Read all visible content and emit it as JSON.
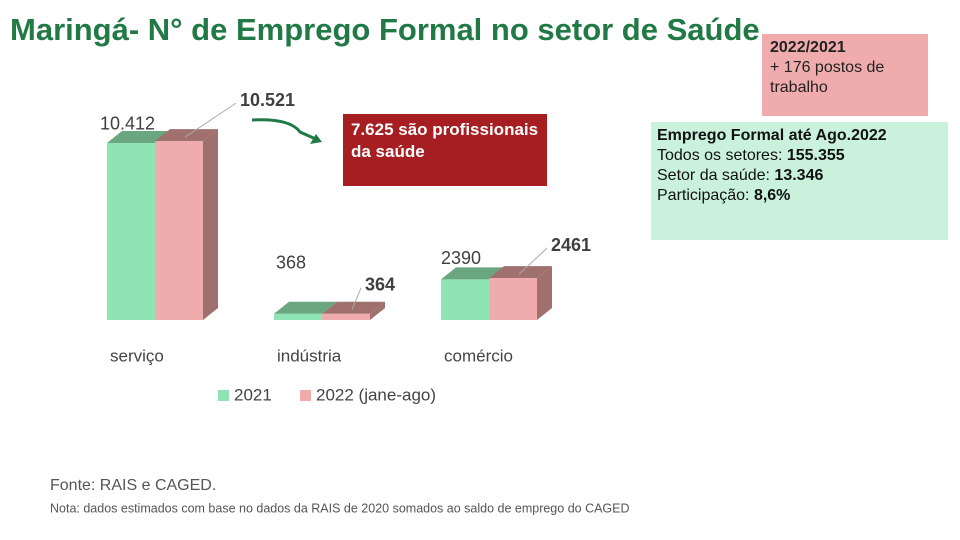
{
  "chart_data": {
    "type": "bar3d",
    "title": "Maringá- N° de Emprego Formal no setor de Saúde",
    "categories": [
      "serviço",
      "indústria",
      "comércio"
    ],
    "series": [
      {
        "name": "2021",
        "color": "#8ee4b4",
        "side_color": "#6aa67f",
        "values": [
          10412,
          368,
          2390
        ],
        "value_labels": [
          "10.412",
          "368",
          "2390"
        ]
      },
      {
        "name": "2022 (jane-ago)",
        "color": "#f0acad",
        "side_color": "#a0706f",
        "values": [
          10521,
          364,
          2461
        ],
        "value_labels": [
          "10.521",
          "364",
          "2461"
        ]
      }
    ],
    "annotations": {
      "health": "7.625 são profissionais da saúde",
      "change": {
        "heading": "2022/2021",
        "text": "+ 176 postos de trabalho"
      },
      "summary": {
        "heading": "Emprego Formal até Ago.2022",
        "rows": [
          {
            "label": "Todos os setores: ",
            "value": "155.355"
          },
          {
            "label": "Setor da saúde: ",
            "value": "13.346"
          },
          {
            "label": "Participação: ",
            "value": "8,6%"
          }
        ]
      }
    },
    "source": "Fonte: RAIS e CAGED.",
    "note": "Nota: dados estimados com base no dados da RAIS de 2020 somados ao saldo de emprego do CAGED"
  }
}
